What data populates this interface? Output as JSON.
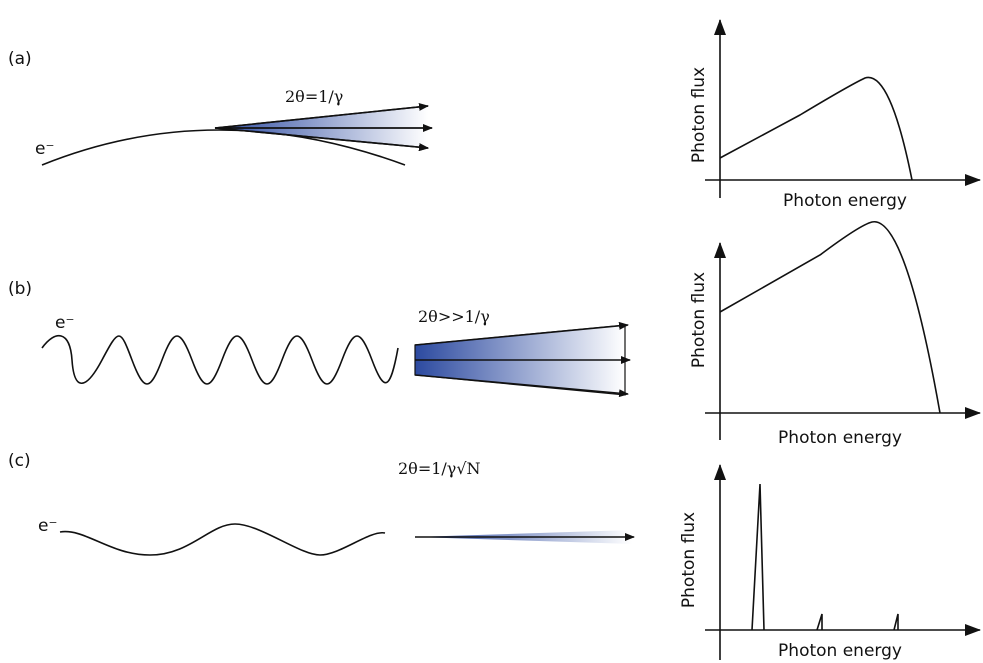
{
  "panels": [
    {
      "label": "(a)",
      "particle": "e⁻",
      "angle": "2θ=1/γ",
      "y_label": "Photon flux",
      "x_label": "Photon energy"
    },
    {
      "label": "(b)",
      "particle": "e⁻",
      "angle": "2θ>>1/γ",
      "y_label": "Photon flux",
      "x_label": "Photon energy"
    },
    {
      "label": "(c)",
      "particle": "e⁻",
      "angle": "2θ=1/γ√N",
      "y_label": "Photon flux",
      "x_label": "Photon energy"
    }
  ]
}
